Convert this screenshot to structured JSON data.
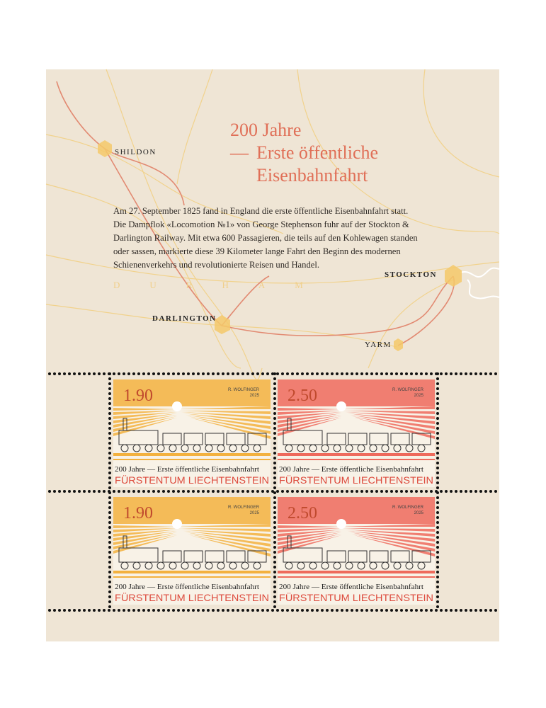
{
  "sheet": {
    "title": {
      "line1": "200 Jahre",
      "dash": "—",
      "line2": "Erste öffentliche",
      "line3": "Eisenbahnfahrt"
    },
    "text": [
      "Am 27. September 1825 fand in England die erste öffentliche Eisenbahnfahrt statt.",
      "Die Dampflok «Locomotion №1» von George Stephenson fuhr auf der Stockton &",
      "Darlington Railway. Mit etwa 600 Passagieren, die teils auf den Kohlewagen standen",
      "oder sassen, markierte diese 39 Kilometer lange Fahrt den Beginn des modernen",
      "Schienenverkehrs und revolutionierte Reisen und Handel."
    ],
    "places": {
      "shildon": "SHILDON",
      "durham": "DURHAM",
      "darlington": "DARLINGTON",
      "stockton": "STOCKTON",
      "yarm": "YARM"
    }
  },
  "stamps": [
    {
      "value": "1.90",
      "designer": "R. WOLFINGER",
      "year": "2025",
      "caption": "200 Jahre — Erste öffentliche Eisenbahnfahrt",
      "country": "FÜRSTENTUM LIECHTENSTEIN"
    },
    {
      "value": "2.50",
      "designer": "R. WOLFINGER",
      "year": "2025",
      "caption": "200 Jahre — Erste öffentliche Eisenbahnfahrt",
      "country": "FÜRSTENTUM LIECHTENSTEIN"
    },
    {
      "value": "1.90",
      "designer": "R. WOLFINGER",
      "year": "2025",
      "caption": "200 Jahre — Erste öffentliche Eisenbahnfahrt",
      "country": "FÜRSTENTUM LIECHTENSTEIN"
    },
    {
      "value": "2.50",
      "designer": "R. WOLFINGER",
      "year": "2025",
      "caption": "200 Jahre — Erste öffentliche Eisenbahnfahrt",
      "country": "FÜRSTENTUM LIECHTENSTEIN"
    }
  ]
}
